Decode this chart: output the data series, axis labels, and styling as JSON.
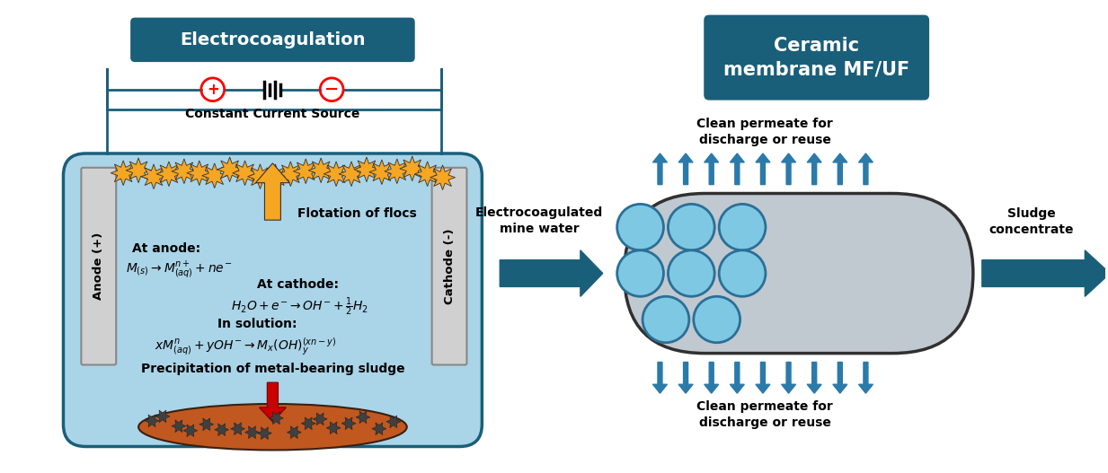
{
  "title_ec": "Electrocoagulation",
  "title_cm": "Ceramic\nmembrane MF/UF",
  "title_bg_color": "#1a5f7a",
  "title_text_color": "#ffffff",
  "tank_fill_color": "#aad4e8",
  "tank_border_color": "#1a5f7a",
  "electrode_color": "#d0d0d0",
  "electrode_border": "#888888",
  "anode_label": "Anode (+)",
  "cathode_label": "Cathode (-)",
  "flotation_label": "Flotation of flocs",
  "precipitation_label": "Precipitation of metal-bearing sludge",
  "current_source_label": "Constant Current Source",
  "membrane_body_color": "#c0c8d0",
  "membrane_border_color": "#303030",
  "channel_color": "#7ec8e3",
  "channel_border": "#2a6f97",
  "arrow_color": "#2a7aaa",
  "big_arrow_color": "#1a5f7a",
  "permeate_top_label": "Clean permeate for\ndischarge or reuse",
  "permeate_bot_label": "Clean permeate for\ndischarge or reuse",
  "ec_water_label": "Electrocoagulated\nmine water",
  "sludge_label": "Sludge\nconcentrate",
  "floc_color": "#f5a623",
  "sludge_color": "#c05820",
  "sludge_border": "#3a2010",
  "bg_color": "#ffffff",
  "wire_color": "#1a5f7a",
  "flotation_arrow_color": "#f5a623",
  "precip_arrow_color": "#cc0000"
}
